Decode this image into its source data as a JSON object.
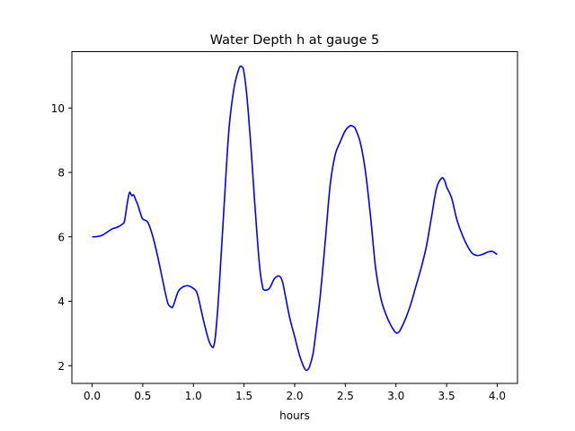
{
  "chart_data": {
    "type": "line",
    "title": "Water Depth h at gauge 5",
    "xlabel": "hours",
    "ylabel": "",
    "xlim": [
      -0.2,
      4.2
    ],
    "ylim": [
      1.45,
      11.75
    ],
    "xticks": [
      0.0,
      0.5,
      1.0,
      1.5,
      2.0,
      2.5,
      3.0,
      3.5,
      4.0
    ],
    "xtick_labels": [
      "0.0",
      "0.5",
      "1.0",
      "1.5",
      "2.0",
      "2.5",
      "3.0",
      "3.5",
      "4.0"
    ],
    "yticks": [
      2,
      4,
      6,
      8,
      10
    ],
    "ytick_labels": [
      "2",
      "4",
      "6",
      "8",
      "10"
    ],
    "grid": false,
    "series": [
      {
        "color": "#0000ff",
        "x": [
          0.0,
          0.05,
          0.1,
          0.15,
          0.2,
          0.25,
          0.3,
          0.32,
          0.35,
          0.37,
          0.39,
          0.41,
          0.43,
          0.45,
          0.48,
          0.5,
          0.55,
          0.6,
          0.65,
          0.7,
          0.72,
          0.75,
          0.78,
          0.8,
          0.85,
          0.9,
          0.95,
          1.0,
          1.03,
          1.05,
          1.1,
          1.15,
          1.18,
          1.2,
          1.22,
          1.25,
          1.3,
          1.35,
          1.4,
          1.45,
          1.48,
          1.5,
          1.53,
          1.57,
          1.6,
          1.65,
          1.68,
          1.7,
          1.75,
          1.8,
          1.85,
          1.88,
          1.9,
          1.95,
          2.0,
          2.05,
          2.1,
          2.13,
          2.15,
          2.18,
          2.2,
          2.25,
          2.3,
          2.35,
          2.4,
          2.45,
          2.5,
          2.55,
          2.58,
          2.6,
          2.65,
          2.7,
          2.75,
          2.8,
          2.85,
          2.9,
          2.95,
          3.0,
          3.03,
          3.05,
          3.1,
          3.15,
          3.2,
          3.25,
          3.3,
          3.35,
          3.4,
          3.45,
          3.48,
          3.5,
          3.55,
          3.6,
          3.65,
          3.7,
          3.75,
          3.8,
          3.85,
          3.9,
          3.95,
          4.0
        ],
        "y": [
          6.0,
          6.01,
          6.05,
          6.15,
          6.25,
          6.3,
          6.4,
          6.5,
          7.1,
          7.38,
          7.28,
          7.3,
          7.15,
          7.0,
          6.7,
          6.55,
          6.45,
          6.0,
          5.35,
          4.6,
          4.3,
          3.92,
          3.82,
          3.85,
          4.3,
          4.45,
          4.48,
          4.4,
          4.3,
          4.1,
          3.4,
          2.8,
          2.6,
          2.6,
          3.0,
          4.2,
          6.8,
          9.3,
          10.6,
          11.22,
          11.28,
          11.1,
          10.3,
          8.7,
          7.3,
          5.2,
          4.5,
          4.35,
          4.4,
          4.7,
          4.78,
          4.6,
          4.3,
          3.5,
          2.9,
          2.3,
          1.9,
          1.88,
          2.0,
          2.35,
          2.8,
          4.1,
          5.8,
          7.6,
          8.55,
          8.95,
          9.3,
          9.45,
          9.42,
          9.35,
          8.9,
          8.0,
          6.6,
          5.0,
          4.1,
          3.6,
          3.25,
          3.02,
          3.05,
          3.15,
          3.5,
          3.95,
          4.5,
          5.05,
          5.7,
          6.6,
          7.5,
          7.82,
          7.75,
          7.55,
          7.2,
          6.55,
          6.1,
          5.75,
          5.5,
          5.42,
          5.45,
          5.52,
          5.55,
          5.45
        ]
      }
    ]
  }
}
